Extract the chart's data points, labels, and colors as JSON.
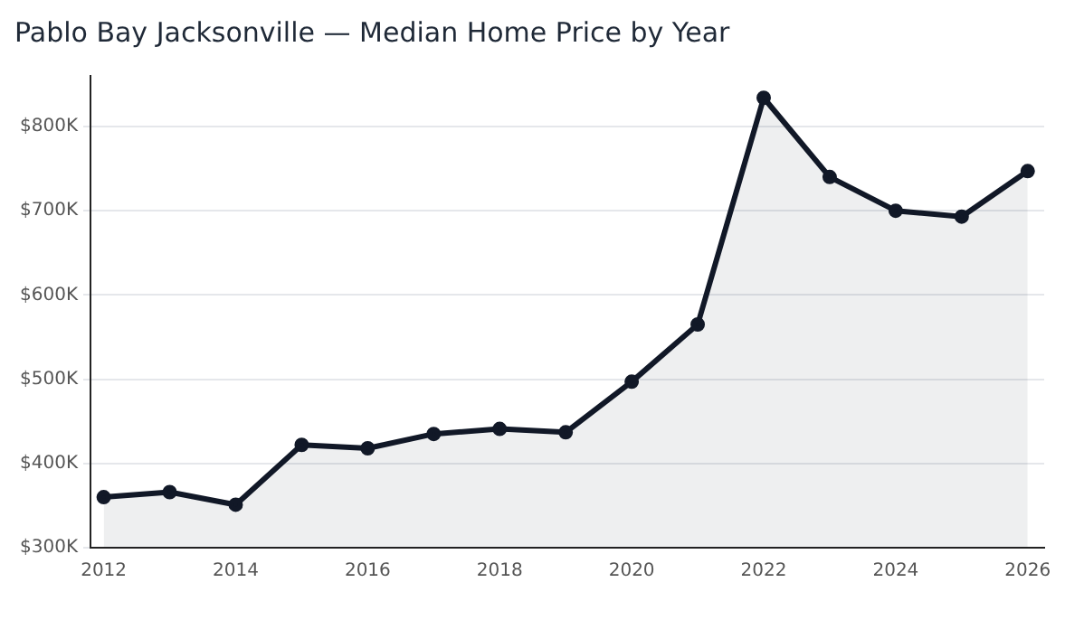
{
  "chart_data": {
    "type": "area",
    "title": "Pablo Bay Jacksonville — Median Home Price by Year",
    "x": [
      2012,
      2013,
      2014,
      2015,
      2016,
      2017,
      2018,
      2019,
      2020,
      2021,
      2022,
      2023,
      2024,
      2025,
      2026
    ],
    "series": [
      {
        "color": "#111827",
        "values": [
          360000,
          366000,
          351000,
          422000,
          418000,
          435000,
          441000,
          437000,
          497000,
          565000,
          834000,
          740000,
          700000,
          693000,
          747000
        ]
      }
    ],
    "xlim": [
      2011.8,
      2026.25
    ],
    "xticks": [
      2012,
      2014,
      2016,
      2018,
      2020,
      2022,
      2024,
      2026
    ],
    "ylim": [
      300000,
      860000
    ],
    "yticks": [
      {
        "value": 300000,
        "label": "$300K"
      },
      {
        "value": 400000,
        "label": "$400K"
      },
      {
        "value": 500000,
        "label": "$500K"
      },
      {
        "value": 600000,
        "label": "$600K"
      },
      {
        "value": 700000,
        "label": "$700K"
      },
      {
        "value": 800000,
        "label": "$800K"
      }
    ],
    "grid": "y",
    "legend": false,
    "marker": "circle",
    "line_style": "solid"
  }
}
